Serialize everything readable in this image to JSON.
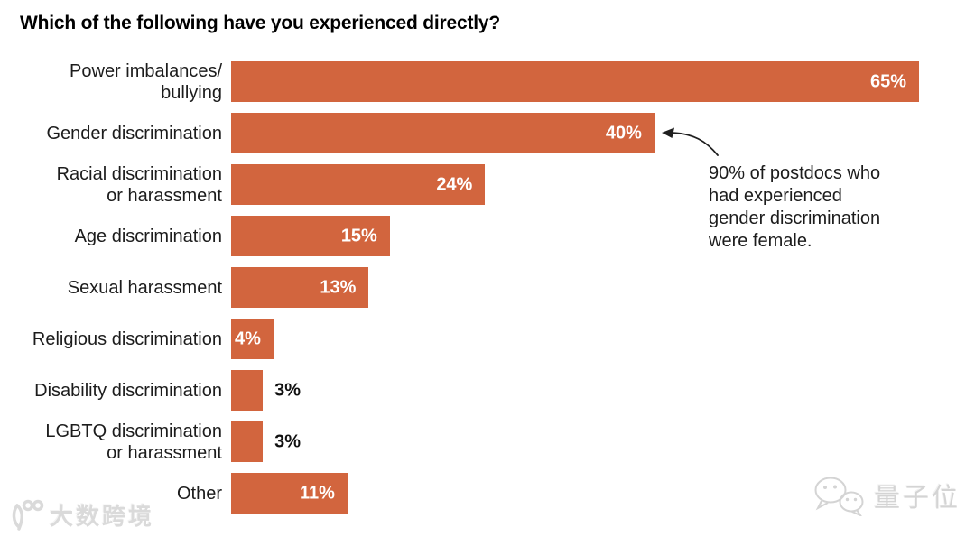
{
  "title": "Which of the following have you experienced directly?",
  "chart_data": {
    "type": "bar",
    "orientation": "horizontal",
    "title": "Which of the following have you experienced directly?",
    "categories": [
      "Power imbalances/ bullying",
      "Gender discrimination",
      "Racial discrimination or harassment",
      "Age discrimination",
      "Sexual harassment",
      "Religious discrimination",
      "Disability discrimination",
      "LGBTQ discrimination or harassment",
      "Other"
    ],
    "category_label_lines": [
      [
        "Power imbalances/",
        "bullying"
      ],
      [
        "Gender discrimination"
      ],
      [
        "Racial discrimination",
        "or harassment"
      ],
      [
        "Age discrimination"
      ],
      [
        "Sexual harassment"
      ],
      [
        "Religious discrimination"
      ],
      [
        "Disability discrimination"
      ],
      [
        "LGBTQ discrimination",
        "or harassment"
      ],
      [
        "Other"
      ]
    ],
    "values": [
      65,
      40,
      24,
      15,
      13,
      4,
      3,
      3,
      11
    ],
    "value_labels": [
      "65%",
      "40%",
      "24%",
      "15%",
      "13%",
      "4%",
      "3%",
      "3%",
      "11%"
    ],
    "value_label_position": [
      "inside",
      "inside",
      "inside",
      "inside",
      "inside",
      "inside",
      "outside",
      "outside",
      "inside"
    ],
    "xlim": [
      0,
      65
    ],
    "grid": false,
    "legend": false,
    "bar_color": "#d2653e",
    "inside_value_color": "#ffffff",
    "outside_value_color": "#111111"
  },
  "annotation": {
    "text": "90% of postdocs who had experienced gender discrimination were female.",
    "lines": [
      "90% of postdocs who",
      "had experienced",
      "gender discrimination",
      "were female."
    ],
    "arrow_target": "Gender discrimination bar"
  },
  "watermarks": {
    "bottom_left": {
      "logo": "100-logo",
      "text": "大数跨境"
    },
    "bottom_right": {
      "icon": "wechat-icon",
      "text": "量子位"
    }
  }
}
